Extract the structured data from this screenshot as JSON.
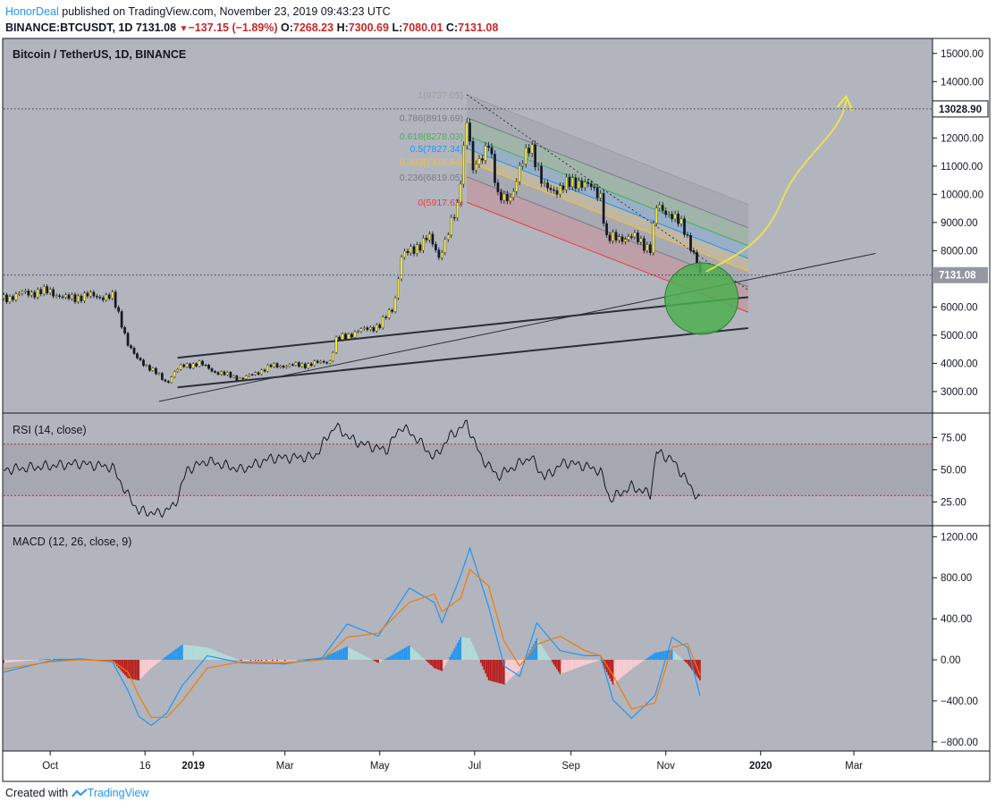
{
  "header": {
    "author": "HonorDeal",
    "published_text": "published on TradingView.com, November 23, 2019 09:43:23 UTC",
    "symbol": "BINANCE:BTCUSDT, 1D",
    "last": "7131.08",
    "change": "−137.15 (−1.89%)",
    "o_label": "O:",
    "o_value": "7268.23",
    "h_label": "H:",
    "h_value": "7300.69",
    "l_label": "L:",
    "l_value": "7080.01",
    "c_label": "C:",
    "c_value": "7131.08"
  },
  "footer": {
    "created_with": "Created with",
    "brand": "TradingView"
  },
  "colors": {
    "bg": "#b2b5be",
    "grid_line": "#131722",
    "candle_up": "#f5eb3b",
    "candle_down": "#131722",
    "rsi_band": "#a5a8b1",
    "macd_line": "#2196f3",
    "signal_line": "#f57c00"
  },
  "chart_data": [
    {
      "type": "candlestick",
      "title": "Bitcoin / TetherUS, 1D, BINANCE",
      "y_axis_ticks": [
        3000,
        4000,
        5000,
        6000,
        7000,
        8000,
        9000,
        10000,
        11000,
        12000,
        13000,
        14000,
        15000
      ],
      "y_axis_tick_labels": [
        "3000.00",
        "4000.00",
        "5000.00",
        "6000.00",
        "7000.00",
        "8000.00",
        "9000.00",
        "10000.00",
        "11000.00",
        "12000.00",
        "13000.00",
        "14000.00",
        "15000.00"
      ],
      "ylim": [
        2300,
        15500
      ],
      "x_axis_ticks": [
        "Oct",
        "16",
        "2019",
        "Mar",
        "May",
        "Jul",
        "Sep",
        "Nov",
        "2020",
        "Mar"
      ],
      "x_axis_tick_dates": [
        "2018-10-01",
        "2018-12-01",
        "2019-01-01",
        "2019-03-01",
        "2019-05-01",
        "2019-07-01",
        "2019-09-01",
        "2019-11-01",
        "2020-01-01",
        "2020-03-01"
      ],
      "xlim": [
        "2018-09-01",
        "2020-04-20"
      ],
      "price_labels": [
        {
          "value": 13028.9,
          "text": "13028.90",
          "style": "black"
        },
        {
          "value": 7131.08,
          "text": "7131.08",
          "style": "grey"
        }
      ],
      "close_path": [
        [
          "2018-09-01",
          6300
        ],
        [
          "2018-09-15",
          6500
        ],
        [
          "2018-10-01",
          6550
        ],
        [
          "2018-10-11",
          6300
        ],
        [
          "2018-10-25",
          6400
        ],
        [
          "2018-11-10",
          6350
        ],
        [
          "2018-11-15",
          5600
        ],
        [
          "2018-11-20",
          4700
        ],
        [
          "2018-11-25",
          4200
        ],
        [
          "2018-12-05",
          3800
        ],
        [
          "2018-12-15",
          3300
        ],
        [
          "2018-12-20",
          3700
        ],
        [
          "2018-12-25",
          3900
        ],
        [
          "2019-01-05",
          4000
        ],
        [
          "2019-01-15",
          3700
        ],
        [
          "2019-02-01",
          3450
        ],
        [
          "2019-02-08",
          3600
        ],
        [
          "2019-02-20",
          3900
        ],
        [
          "2019-03-15",
          3950
        ],
        [
          "2019-03-31",
          4100
        ],
        [
          "2019-04-02",
          4800
        ],
        [
          "2019-04-15",
          5100
        ],
        [
          "2019-05-01",
          5350
        ],
        [
          "2019-05-10",
          6000
        ],
        [
          "2019-05-15",
          7800
        ],
        [
          "2019-05-22",
          8000
        ],
        [
          "2019-06-01",
          8500
        ],
        [
          "2019-06-08",
          7800
        ],
        [
          "2019-06-15",
          8800
        ],
        [
          "2019-06-20",
          9500
        ],
        [
          "2019-06-26",
          12800
        ],
        [
          "2019-06-30",
          10800
        ],
        [
          "2019-07-05",
          11200
        ],
        [
          "2019-07-10",
          12000
        ],
        [
          "2019-07-16",
          9800
        ],
        [
          "2019-07-25",
          10000
        ],
        [
          "2019-08-06",
          11900
        ],
        [
          "2019-08-14",
          10200
        ],
        [
          "2019-08-25",
          10200
        ],
        [
          "2019-09-05",
          10500
        ],
        [
          "2019-09-20",
          10000
        ],
        [
          "2019-09-24",
          8400
        ],
        [
          "2019-10-10",
          8500
        ],
        [
          "2019-10-22",
          8100
        ],
        [
          "2019-10-26",
          9500
        ],
        [
          "2019-11-05",
          9300
        ],
        [
          "2019-11-12",
          8800
        ],
        [
          "2019-11-18",
          8100
        ],
        [
          "2019-11-21",
          7600
        ],
        [
          "2019-11-23",
          7131
        ]
      ],
      "fibonacci_channel": {
        "levels": [
          {
            "ratio": "0",
            "label": "0(5917.62)",
            "color": "#f23645"
          },
          {
            "ratio": "0.236",
            "label": "0.236(6819.05)",
            "color": "#787b86"
          },
          {
            "ratio": "0.382",
            "label": "0.382(7376.64)",
            "color": "#fbc02d"
          },
          {
            "ratio": "0.5",
            "label": "0.5(7827.34)",
            "color": "#2196f3"
          },
          {
            "ratio": "0.618",
            "label": "0.618(8278.03)",
            "color": "#4caf50"
          },
          {
            "ratio": "0.786",
            "label": "0.786(8919.69)",
            "color": "#787b86"
          },
          {
            "ratio": "1",
            "label": "1(9737.05)",
            "color": "#9e9e9e"
          }
        ],
        "start_date": "2019-06-26",
        "end_date": "2019-12-24"
      },
      "trendlines": [
        {
          "from": [
            "2018-12-22",
            4200
          ],
          "to": [
            "2019-12-24",
            6350
          ]
        },
        {
          "from": [
            "2018-12-22",
            3150
          ],
          "to": [
            "2019-12-24",
            5250
          ]
        },
        {
          "from": [
            "2018-12-10",
            2650
          ],
          "to": [
            "2020-03-15",
            7900
          ]
        }
      ],
      "target_price": 13028.9,
      "target_zone": {
        "date": "2019-11-24",
        "value": 6300
      }
    },
    {
      "type": "line",
      "title": "RSI (14, close)",
      "y_axis_ticks": [
        25,
        50,
        75
      ],
      "y_axis_tick_labels": [
        "25.00",
        "50.00",
        "75.00"
      ],
      "ylim": [
        8,
        92
      ],
      "overbought": 70,
      "oversold": 30,
      "x": [
        "2018-09-01",
        "2018-10-01",
        "2018-10-20",
        "2018-11-10",
        "2018-11-20",
        "2018-11-27",
        "2018-12-10",
        "2018-12-20",
        "2018-12-28",
        "2019-01-10",
        "2019-02-01",
        "2019-02-20",
        "2019-03-20",
        "2019-04-02",
        "2019-04-15",
        "2019-05-05",
        "2019-05-15",
        "2019-05-25",
        "2019-06-05",
        "2019-06-15",
        "2019-06-26",
        "2019-07-05",
        "2019-07-16",
        "2019-08-06",
        "2019-08-15",
        "2019-08-28",
        "2019-09-10",
        "2019-09-20",
        "2019-09-26",
        "2019-10-10",
        "2019-10-22",
        "2019-10-26",
        "2019-11-05",
        "2019-11-12",
        "2019-11-18",
        "2019-11-23"
      ],
      "values": [
        50,
        53,
        55,
        52,
        30,
        18,
        16,
        22,
        50,
        57,
        50,
        59,
        60,
        84,
        72,
        65,
        84,
        74,
        59,
        76,
        86,
        60,
        45,
        60,
        44,
        56,
        53,
        49,
        27,
        37,
        31,
        64,
        58,
        46,
        35,
        26
      ]
    },
    {
      "type": "line",
      "title": "MACD (12, 26, close, 9)",
      "y_axis_ticks": [
        -800,
        -400,
        0,
        400,
        800,
        1200
      ],
      "y_axis_tick_labels": [
        "−800.00",
        "−400.00",
        "0.00",
        "400.00",
        "800.00",
        "1200.00"
      ],
      "ylim": [
        -880,
        1290
      ],
      "x": [
        "2018-09-01",
        "2018-10-01",
        "2018-10-20",
        "2018-11-10",
        "2018-11-20",
        "2018-11-27",
        "2018-12-05",
        "2018-12-15",
        "2018-12-25",
        "2019-01-10",
        "2019-02-01",
        "2019-03-01",
        "2019-03-25",
        "2019-04-10",
        "2019-04-30",
        "2019-05-20",
        "2019-06-05",
        "2019-06-10",
        "2019-06-22",
        "2019-06-28",
        "2019-07-10",
        "2019-07-20",
        "2019-07-30",
        "2019-08-10",
        "2019-08-25",
        "2019-09-10",
        "2019-09-20",
        "2019-09-28",
        "2019-10-10",
        "2019-10-25",
        "2019-11-05",
        "2019-11-15",
        "2019-11-23"
      ],
      "series": [
        {
          "name": "MACD",
          "values": [
            -120,
            -10,
            10,
            -20,
            -300,
            -550,
            -640,
            -520,
            -250,
            40,
            -30,
            -40,
            20,
            350,
            230,
            700,
            560,
            360,
            820,
            1090,
            520,
            -60,
            -160,
            360,
            90,
            40,
            40,
            -390,
            -570,
            -350,
            220,
            120,
            -350
          ]
        },
        {
          "name": "Signal",
          "values": [
            -90,
            -20,
            0,
            -10,
            -120,
            -350,
            -560,
            -560,
            -400,
            -80,
            -20,
            -30,
            0,
            220,
            260,
            560,
            640,
            470,
            600,
            880,
            720,
            180,
            -60,
            150,
            230,
            90,
            40,
            -150,
            -480,
            -420,
            120,
            160,
            -150
          ]
        }
      ]
    }
  ]
}
